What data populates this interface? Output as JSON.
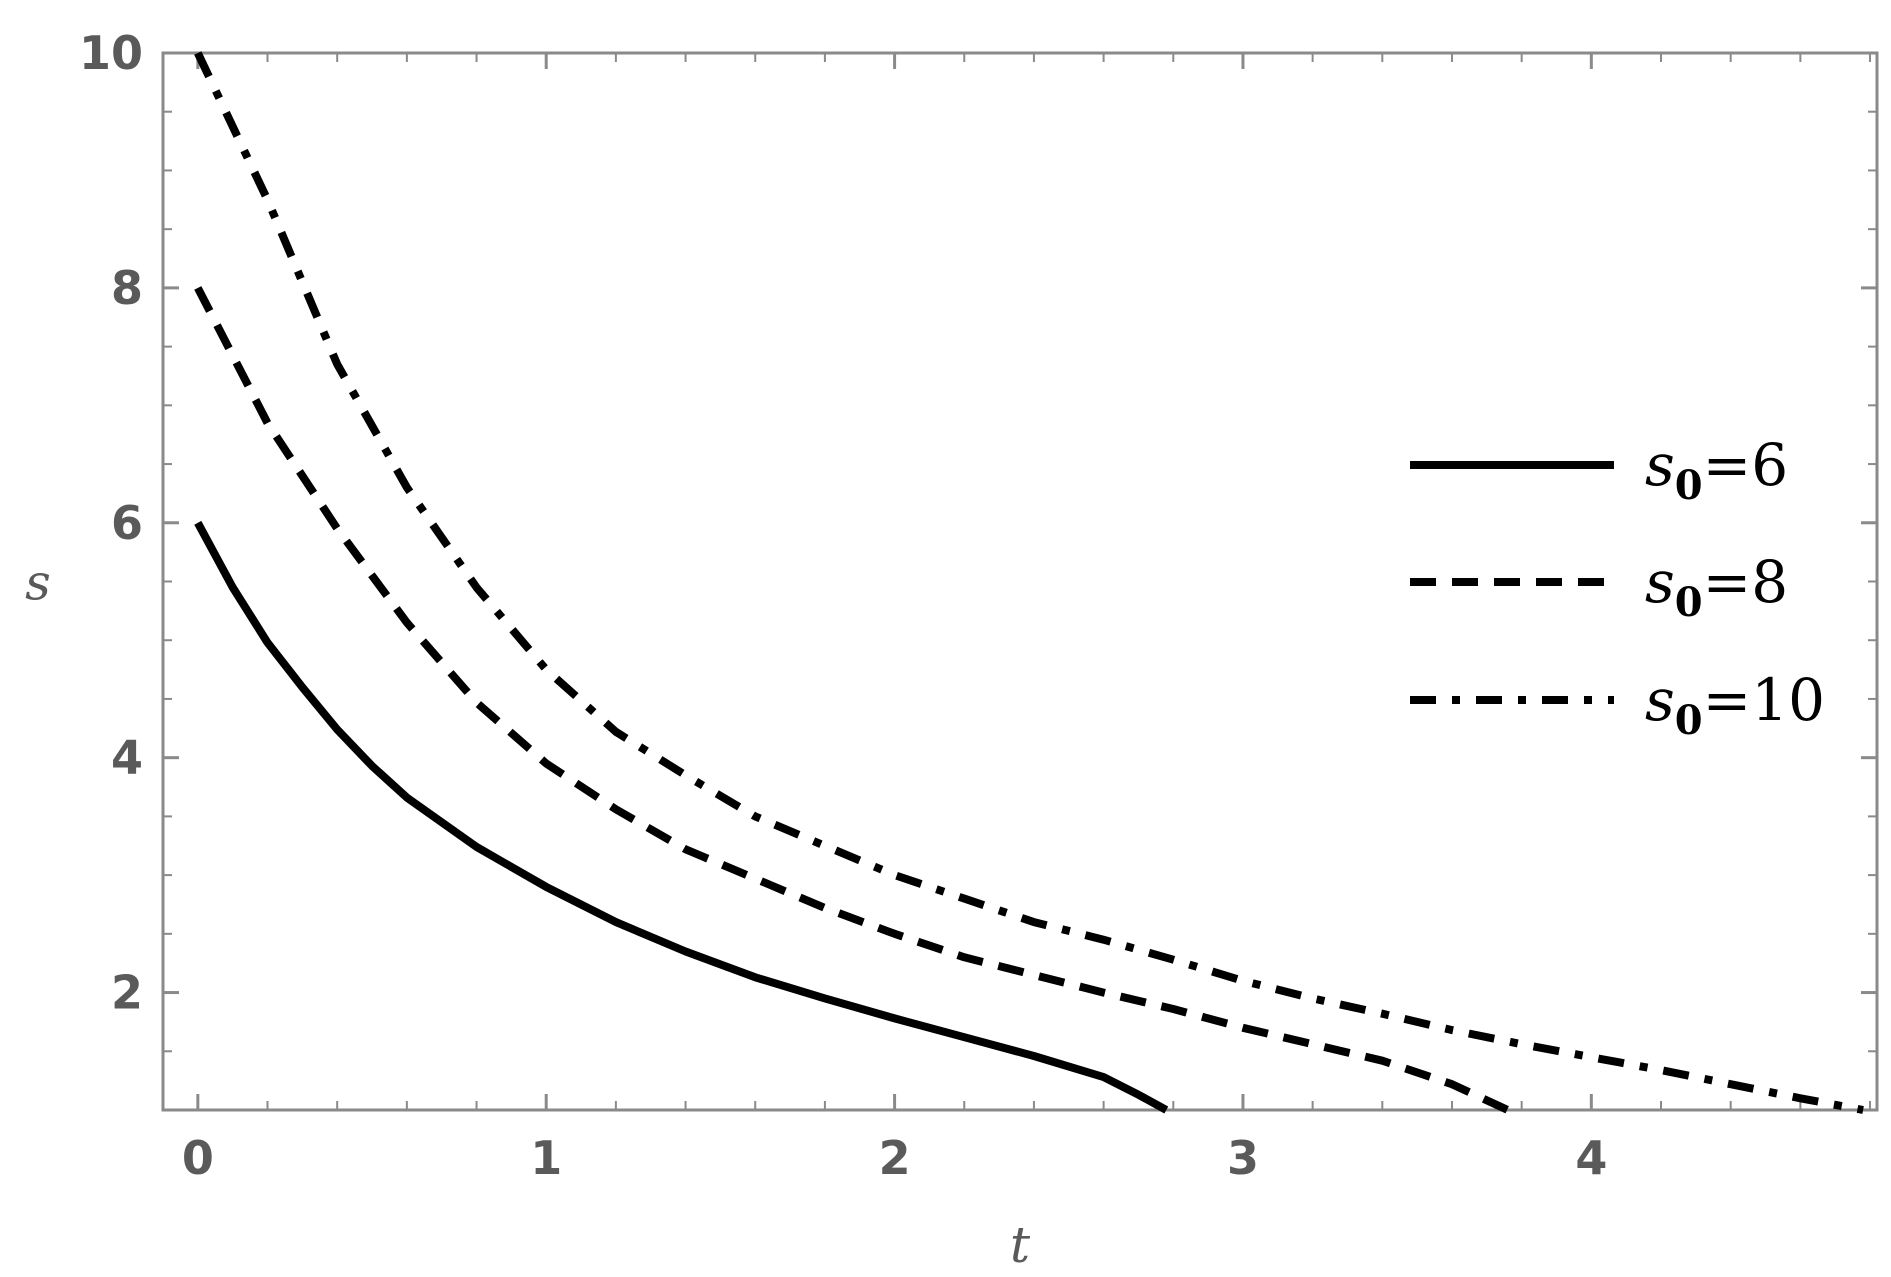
{
  "chart_data": {
    "type": "line",
    "title": "",
    "xlabel": "t",
    "ylabel": "s",
    "xlim": [
      -0.1,
      4.82
    ],
    "ylim": [
      1,
      10
    ],
    "xticks": [
      "0",
      "1",
      "2",
      "3",
      "4"
    ],
    "yticks": [
      "2",
      "4",
      "6",
      "8",
      "10"
    ],
    "grid": false,
    "legend_position": "right",
    "series": [
      {
        "name": "s0=6",
        "legend_base": "s",
        "legend_sub": "0",
        "legend_value": "=6",
        "line_style": "solid",
        "x": [
          0,
          0.1,
          0.2,
          0.3,
          0.4,
          0.5,
          0.6,
          0.8,
          1.0,
          1.2,
          1.4,
          1.6,
          1.8,
          2.0,
          2.2,
          2.4,
          2.6,
          2.7,
          2.78
        ],
        "y": [
          6.0,
          5.45,
          4.98,
          4.6,
          4.24,
          3.93,
          3.66,
          3.24,
          2.9,
          2.6,
          2.35,
          2.13,
          1.95,
          1.78,
          1.62,
          1.46,
          1.28,
          1.13,
          1.0
        ]
      },
      {
        "name": "s0=8",
        "legend_base": "s",
        "legend_sub": "0",
        "legend_value": "=8",
        "line_style": "dashed",
        "x": [
          0,
          0.2,
          0.4,
          0.6,
          0.8,
          1.0,
          1.2,
          1.4,
          1.6,
          1.8,
          2.0,
          2.2,
          2.4,
          2.6,
          2.8,
          3.0,
          3.2,
          3.4,
          3.6,
          3.76
        ],
        "y": [
          8.0,
          6.85,
          5.95,
          5.15,
          4.47,
          3.95,
          3.56,
          3.22,
          2.97,
          2.72,
          2.5,
          2.3,
          2.15,
          2.0,
          1.86,
          1.7,
          1.56,
          1.42,
          1.22,
          1.0
        ]
      },
      {
        "name": "s0=10",
        "legend_base": "s",
        "legend_sub": "0",
        "legend_value": "=10",
        "line_style": "dashdot",
        "x": [
          0,
          0.2,
          0.4,
          0.6,
          0.8,
          1.0,
          1.2,
          1.4,
          1.6,
          1.8,
          2.0,
          2.2,
          2.4,
          2.6,
          2.8,
          3.0,
          3.2,
          3.4,
          3.6,
          3.8,
          4.0,
          4.2,
          4.4,
          4.6,
          4.78
        ],
        "y": [
          10.0,
          8.75,
          7.35,
          6.3,
          5.45,
          4.75,
          4.22,
          3.85,
          3.5,
          3.25,
          3.0,
          2.8,
          2.6,
          2.45,
          2.28,
          2.1,
          1.95,
          1.82,
          1.68,
          1.56,
          1.45,
          1.34,
          1.22,
          1.1,
          1.0
        ]
      }
    ]
  }
}
